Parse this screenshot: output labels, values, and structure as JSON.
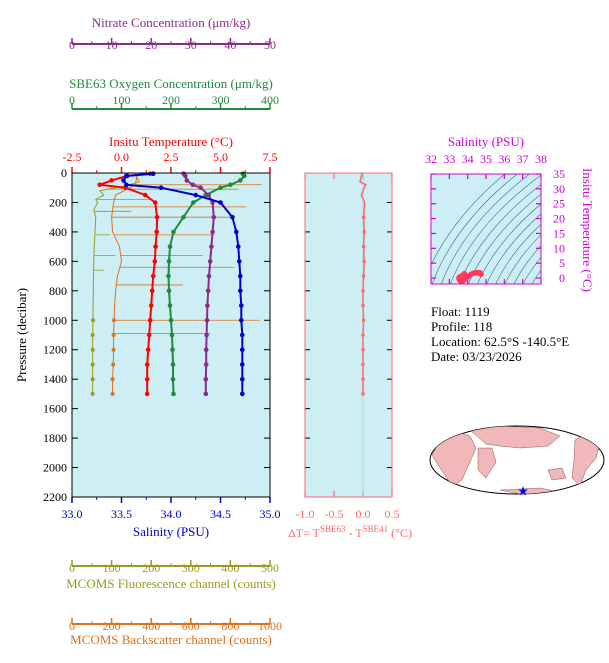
{
  "colors": {
    "panel_bg": "#cdeef5",
    "nitrate": "#8b2a8b",
    "oxygen": "#1f8a3a",
    "temperature": "#ff0000",
    "salinity": "#0000cc",
    "fluorescence": "#9a9a20",
    "backscatter": "#e0701a",
    "delta_t": "#ff6a6a",
    "ts_axis": "#d400d4",
    "ts_contour": "#3a6a8a",
    "ts_points": "#ff3a5a",
    "land": "#f0b8b8",
    "ocean": "#ffffff",
    "star": "#0000ff"
  },
  "info": {
    "float_line": "Float:  1119",
    "profile_line": "Profile:  118",
    "location_line": "Location:  62.5°S  -140.5°E",
    "date_line": "Date:  03/23/2026"
  },
  "chart_data": [
    {
      "type": "line",
      "panel": "profile",
      "ylabel": "Pressure (decibar)",
      "ylim": [
        2200,
        0
      ],
      "yticks": [
        "0",
        "200",
        "400",
        "600",
        "800",
        "1000",
        "1200",
        "1400",
        "1600",
        "1800",
        "2000",
        "2200"
      ],
      "axes": [
        {
          "key": "nitrate",
          "label": "Nitrate Concentration (μm/kg)",
          "range": [
            0,
            50
          ],
          "ticks": [
            "0",
            "10",
            "20",
            "30",
            "40",
            "50"
          ]
        },
        {
          "key": "oxygen",
          "label": "SBE63 Oxygen Concentration (μm/kg)",
          "range": [
            0,
            400
          ],
          "ticks": [
            "0",
            "100",
            "200",
            "300",
            "400"
          ]
        },
        {
          "key": "temperature",
          "label": "Insitu Temperature (°C)",
          "range": [
            -2.5,
            7.5
          ],
          "ticks": [
            "-2.5",
            "0.0",
            "2.5",
            "5.0",
            "7.5"
          ]
        },
        {
          "key": "salinity",
          "label": "Salinity (PSU)",
          "range": [
            33.0,
            35.0
          ],
          "ticks": [
            "33.0",
            "33.5",
            "34.0",
            "34.5",
            "35.0"
          ]
        },
        {
          "key": "fluorescence",
          "label": "MCOMS Fluorescence channel (counts)",
          "range": [
            0,
            500
          ],
          "ticks": [
            "0",
            "100",
            "200",
            "300",
            "400",
            "500"
          ]
        },
        {
          "key": "backscatter",
          "label": "MCOMS Backscatter channel (counts)",
          "range": [
            0,
            1000
          ],
          "ticks": [
            "0",
            "200",
            "400",
            "600",
            "800",
            "1000"
          ]
        }
      ],
      "series": [
        {
          "key": "salinity",
          "p": [
            5,
            20,
            50,
            80,
            100,
            150,
            200,
            300,
            400,
            500,
            600,
            700,
            800,
            900,
            1000,
            1100,
            1200,
            1300,
            1400,
            1500
          ],
          "v": [
            33.82,
            33.55,
            33.52,
            33.55,
            33.9,
            34.25,
            34.5,
            34.62,
            34.66,
            34.68,
            34.69,
            34.7,
            34.7,
            34.71,
            34.71,
            34.72,
            34.72,
            34.72,
            34.72,
            34.72
          ]
        },
        {
          "key": "temperature",
          "p": [
            5,
            20,
            50,
            80,
            100,
            150,
            200,
            300,
            400,
            500,
            600,
            700,
            800,
            900,
            1000,
            1100,
            1200,
            1300,
            1400,
            1500
          ],
          "v": [
            1.45,
            0.3,
            -0.5,
            -1.1,
            0.2,
            1.2,
            1.7,
            1.8,
            1.78,
            1.72,
            1.68,
            1.6,
            1.55,
            1.5,
            1.45,
            1.4,
            1.35,
            1.3,
            1.3,
            1.3
          ]
        },
        {
          "key": "oxygen",
          "p": [
            5,
            20,
            50,
            80,
            100,
            150,
            200,
            300,
            400,
            500,
            600,
            700,
            800,
            900,
            1000,
            1100,
            1200,
            1300,
            1400,
            1500
          ],
          "v": [
            345,
            348,
            340,
            320,
            300,
            270,
            245,
            225,
            205,
            198,
            196,
            195,
            196,
            198,
            200,
            202,
            203,
            204,
            204,
            205
          ]
        },
        {
          "key": "nitrate",
          "p": [
            5,
            20,
            50,
            80,
            100,
            150,
            200,
            300,
            400,
            500,
            600,
            700,
            800,
            900,
            1000,
            1100,
            1200,
            1300,
            1400,
            1500
          ],
          "v": [
            28.2,
            28.6,
            29.0,
            30.5,
            32.5,
            34.5,
            35.5,
            35.8,
            35.5,
            35.2,
            34.9,
            34.6,
            34.4,
            34.2,
            34.1,
            34.0,
            33.9,
            33.9,
            33.8,
            33.8
          ]
        },
        {
          "key": "fluorescence",
          "p": [
            5,
            60,
            90,
            120,
            150,
            180,
            200,
            250,
            300,
            400,
            500,
            600,
            700,
            800,
            900,
            1000,
            1100,
            1200,
            1300,
            1400,
            1500
          ],
          "v": [
            160,
            170,
            130,
            70,
            80,
            60,
            65,
            55,
            60,
            58,
            56,
            55,
            54,
            54,
            53,
            53,
            52,
            52,
            52,
            52,
            52
          ]
        },
        {
          "key": "backscatter",
          "p": [
            5,
            80,
            150,
            200,
            300,
            400,
            500,
            600,
            700,
            800,
            900,
            1000,
            1100,
            1200,
            1300,
            1400,
            1500
          ],
          "v": [
            330,
            320,
            220,
            210,
            200,
            205,
            240,
            250,
            230,
            220,
            215,
            212,
            210,
            210,
            208,
            205,
            205
          ]
        }
      ]
    },
    {
      "type": "line",
      "panel": "delta_t",
      "xlabel": "ΔT= T^SBE63 - T^SBE41 (°C)",
      "xlabel_parts": {
        "prefix": "ΔT= T",
        "sup1": "SBE63",
        "mid": " - T",
        "sup2": "SBE41",
        "suffix": " (°C)"
      },
      "xlim": [
        -1.0,
        0.5
      ],
      "ylim": [
        2200,
        0
      ],
      "xticks": [
        "-1.0",
        "-0.5",
        "0.0",
        "0.5"
      ],
      "series": [
        {
          "name": "",
          "p": [
            5,
            60,
            80,
            100,
            150,
            200,
            300,
            400,
            500,
            600,
            700,
            800,
            900,
            1000,
            1100,
            1200,
            1300,
            1400,
            1500
          ],
          "v": [
            -0.02,
            -0.05,
            0.05,
            0.02,
            -0.03,
            0.03,
            0.01,
            0.02,
            0.01,
            0.02,
            0.01,
            0.0,
            0.0,
            0.01,
            0.0,
            0.0,
            0.0,
            0.0,
            0.0
          ]
        }
      ]
    },
    {
      "type": "scatter",
      "panel": "ts_diagram",
      "title": "Salinity (PSU)",
      "ylabel": "Insitu Temperature (°C)",
      "xlim": [
        32,
        38
      ],
      "ylim": [
        -2,
        35
      ],
      "xticks": [
        "32",
        "33",
        "34",
        "35",
        "36",
        "37",
        "38"
      ],
      "yticks": [
        "0",
        "5",
        "10",
        "15",
        "20",
        "25",
        "30",
        "35"
      ],
      "points": [
        [
          33.82,
          1.45
        ],
        [
          33.78,
          1.2
        ],
        [
          33.75,
          1.0
        ],
        [
          33.7,
          0.8
        ],
        [
          33.62,
          0.5
        ],
        [
          33.55,
          0.3
        ],
        [
          33.52,
          0.0
        ],
        [
          33.55,
          -0.5
        ],
        [
          33.6,
          -0.9
        ],
        [
          33.7,
          -1.0
        ],
        [
          33.8,
          -0.7
        ],
        [
          33.9,
          -0.2
        ],
        [
          34.0,
          0.4
        ],
        [
          34.1,
          0.9
        ],
        [
          34.2,
          1.3
        ],
        [
          34.3,
          1.6
        ],
        [
          34.4,
          1.75
        ],
        [
          34.5,
          1.8
        ],
        [
          34.6,
          1.8
        ],
        [
          34.66,
          1.75
        ],
        [
          34.69,
          1.65
        ],
        [
          34.71,
          1.5
        ],
        [
          34.72,
          1.35
        ],
        [
          34.72,
          1.3
        ]
      ]
    }
  ]
}
